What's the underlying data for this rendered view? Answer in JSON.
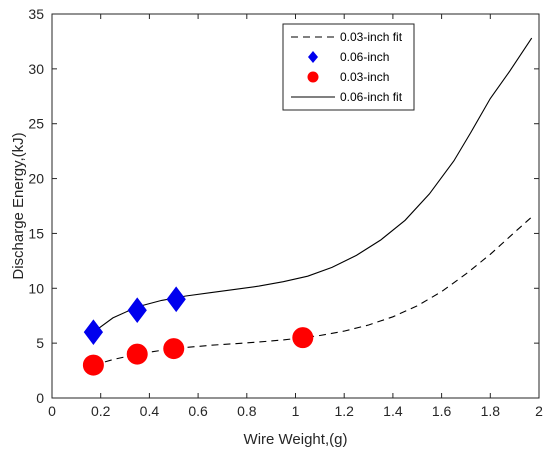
{
  "chart_data": {
    "type": "scatter",
    "title": "",
    "xlabel": "Wire Weight,(g)",
    "ylabel": "Discharge Energy,(kJ)",
    "xlim": [
      0,
      2
    ],
    "ylim": [
      0,
      35
    ],
    "xticks": [
      "0",
      "0.2",
      "0.4",
      "0.6",
      "0.8",
      "1",
      "1.2",
      "1.4",
      "1.6",
      "1.8",
      "2"
    ],
    "yticks": [
      "0",
      "5",
      "10",
      "15",
      "20",
      "25",
      "30",
      "35"
    ],
    "grid": false,
    "legend_position": "top-right",
    "series": [
      {
        "name": "0.03-inch fit",
        "kind": "line",
        "style": "dashed",
        "color": "#000000",
        "x": [
          0.17,
          0.25,
          0.35,
          0.45,
          0.55,
          0.65,
          0.75,
          0.85,
          0.95,
          1.03,
          1.1,
          1.2,
          1.3,
          1.4,
          1.5,
          1.6,
          1.7,
          1.8,
          1.9,
          1.97
        ],
        "y": [
          3.0,
          3.5,
          4.0,
          4.35,
          4.6,
          4.8,
          4.95,
          5.1,
          5.3,
          5.5,
          5.7,
          6.1,
          6.65,
          7.4,
          8.4,
          9.7,
          11.3,
          13.1,
          15.1,
          16.5
        ]
      },
      {
        "name": "0.06-inch",
        "kind": "marker",
        "marker": "diamond",
        "color": "#0000ee",
        "x": [
          0.17,
          0.35,
          0.51
        ],
        "y": [
          6.0,
          8.0,
          9.0
        ]
      },
      {
        "name": "0.03-inch",
        "kind": "marker",
        "marker": "circle",
        "color": "#ff0000",
        "x": [
          0.17,
          0.35,
          0.5,
          1.03
        ],
        "y": [
          3.0,
          4.0,
          4.5,
          5.5
        ]
      },
      {
        "name": "0.06-inch fit",
        "kind": "line",
        "style": "solid",
        "color": "#000000",
        "x": [
          0.17,
          0.25,
          0.35,
          0.45,
          0.55,
          0.65,
          0.75,
          0.85,
          0.95,
          1.05,
          1.15,
          1.25,
          1.35,
          1.45,
          1.55,
          1.65,
          1.72,
          1.8,
          1.88,
          1.97
        ],
        "y": [
          6.0,
          7.3,
          8.3,
          8.9,
          9.3,
          9.6,
          9.9,
          10.2,
          10.6,
          11.1,
          11.9,
          13.0,
          14.4,
          16.2,
          18.6,
          21.6,
          24.2,
          27.3,
          29.8,
          32.8
        ]
      }
    ]
  }
}
